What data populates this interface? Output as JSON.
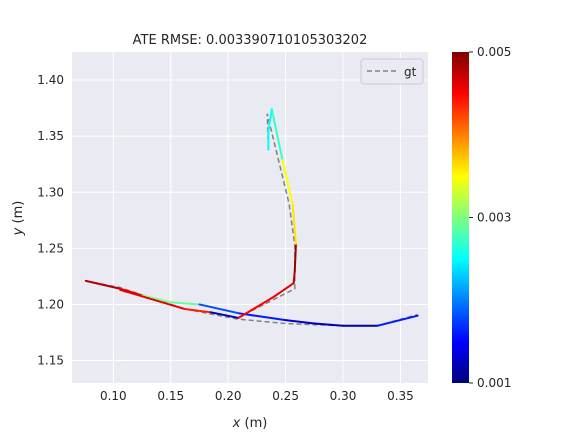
{
  "chart_data": {
    "type": "line",
    "title": "ATE RMSE: 0.003390710105303202",
    "xlabel": "x (m)",
    "ylabel": "y (m)",
    "xlim": [
      0.064,
      0.374
    ],
    "ylim": [
      1.13,
      1.425
    ],
    "xticks": [
      "0.10",
      "0.15",
      "0.20",
      "0.25",
      "0.30",
      "0.35"
    ],
    "yticks": [
      "1.15",
      "1.20",
      "1.25",
      "1.30",
      "1.35",
      "1.40"
    ],
    "grid": true,
    "legend": {
      "position": "top-right",
      "entries": [
        "gt"
      ]
    },
    "colorbar": {
      "range": [
        0.001,
        0.005
      ],
      "ticks": [
        "0.001",
        "0.003",
        "0.005"
      ],
      "colormap": "jet"
    },
    "series": [
      {
        "name": "gt",
        "style": "dashed",
        "color": "#808080",
        "x": [
          0.076,
          0.106,
          0.162,
          0.208,
          0.25,
          0.3,
          0.33,
          0.365
        ],
        "y": [
          1.221,
          1.215,
          1.196,
          1.187,
          1.183,
          1.181,
          1.181,
          1.191
        ]
      },
      {
        "name": "gt",
        "style": "dashed",
        "color": "#808080",
        "x": [
          0.208,
          0.258,
          0.258,
          0.253,
          0.234,
          0.235
        ],
        "y": [
          1.188,
          1.214,
          1.253,
          1.29,
          1.37,
          1.34
        ]
      },
      {
        "name": "",
        "style": "solid",
        "colormap_values": [
          0.0048,
          0.0046,
          0.003,
          0.0029,
          0.0018,
          0.0016,
          0.0013,
          0.0012,
          0.0011,
          0.0016,
          0.0025
        ],
        "x": [
          0.076,
          0.106,
          0.125,
          0.15,
          0.175,
          0.21,
          0.25,
          0.275,
          0.3,
          0.33,
          0.365
        ],
        "y": [
          1.221,
          1.214,
          1.208,
          1.202,
          1.2,
          1.192,
          1.186,
          1.183,
          1.181,
          1.181,
          1.19
        ]
      },
      {
        "name": "",
        "style": "solid",
        "colormap_values": [
          0.0046,
          0.0044,
          0.0012,
          0.0016
        ],
        "x": [
          0.106,
          0.162,
          0.185,
          0.209
        ],
        "y": [
          1.213,
          1.196,
          1.193,
          1.188
        ]
      },
      {
        "name": "",
        "style": "solid",
        "colormap_values": [
          0.0045,
          0.0046,
          0.0048,
          0.0049,
          0.0036,
          0.0035,
          0.0027,
          0.0025,
          0.0025,
          0.0014
        ],
        "x": [
          0.209,
          0.24,
          0.257,
          0.258,
          0.259,
          0.256,
          0.247,
          0.238,
          0.235,
          0.235
        ],
        "y": [
          1.188,
          1.207,
          1.219,
          1.23,
          1.254,
          1.29,
          1.33,
          1.374,
          1.355,
          1.338
        ]
      }
    ]
  }
}
